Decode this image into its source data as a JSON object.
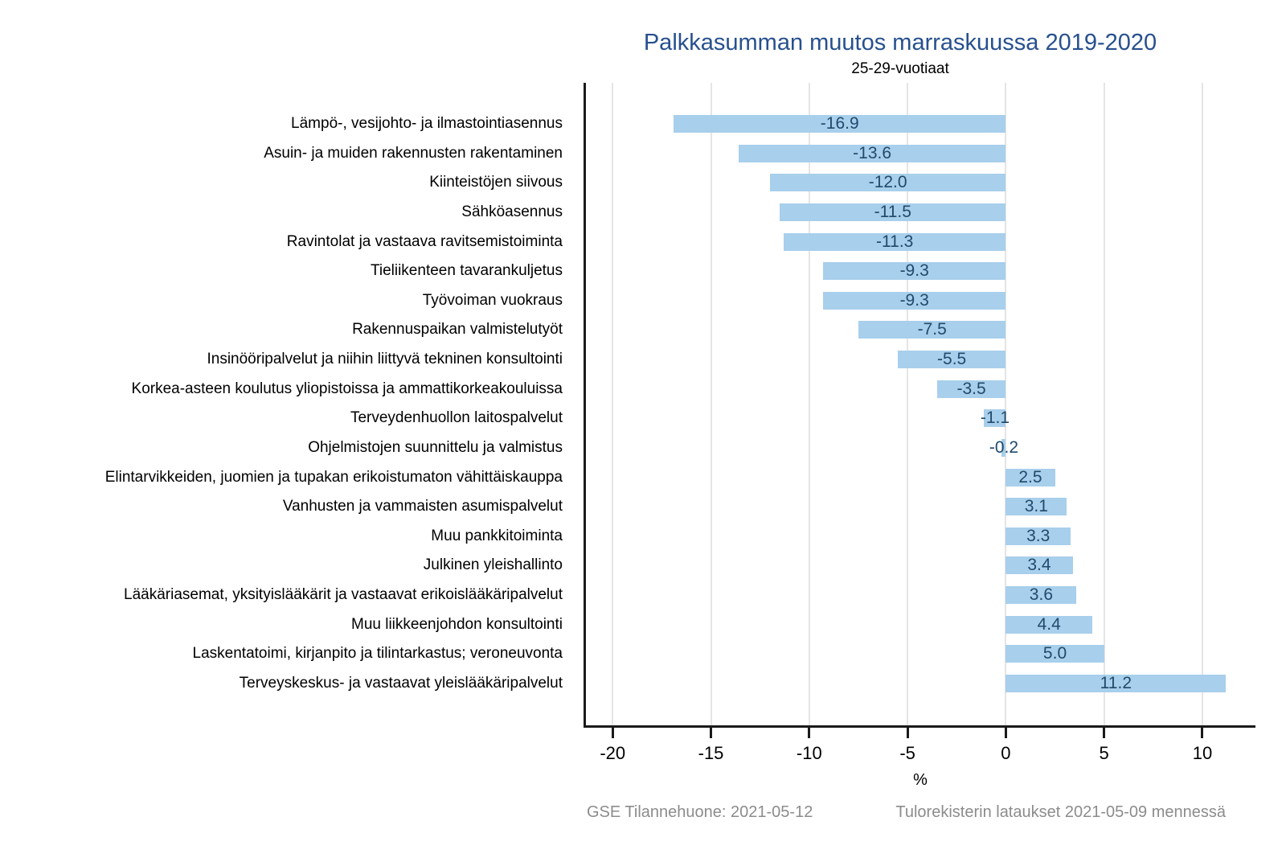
{
  "chart_data": {
    "type": "bar",
    "orientation": "horizontal",
    "title": "Palkkasumman muutos marraskuussa 2019-2020",
    "subtitle": "25-29-vuotiaat",
    "xlabel": "%",
    "categories": [
      "Lämpö-, vesijohto- ja ilmastointiasennus",
      "Asuin- ja muiden rakennusten rakentaminen",
      "Kiinteistöjen siivous",
      "Sähköasennus",
      "Ravintolat ja vastaava ravitsemistoiminta",
      "Tieliikenteen tavarankuljetus",
      "Työvoiman vuokraus",
      "Rakennuspaikan valmistelutyöt",
      "Insinööripalvelut ja niihin liittyvä tekninen konsultointi",
      "Korkea-asteen koulutus yliopistoissa ja ammattikorkeakouluissa",
      "Terveydenhuollon laitospalvelut",
      "Ohjelmistojen suunnittelu ja valmistus",
      "Elintarvikkeiden, juomien ja tupakan erikoistumaton vähittäiskauppa",
      "Vanhusten ja vammaisten asumispalvelut",
      "Muu pankkitoiminta",
      "Julkinen yleishallinto",
      "Lääkäriasemat, yksityislääkärit ja vastaavat erikoislääkäripalvelut",
      "Muu liikkeenjohdon konsultointi",
      "Laskentatoimi, kirjanpito ja tilintarkastus; veroneuvonta",
      "Terveyskeskus- ja vastaavat yleislääkäripalvelut"
    ],
    "values": [
      -16.9,
      -13.6,
      -12.0,
      -11.5,
      -11.3,
      -9.3,
      -9.3,
      -7.5,
      -5.5,
      -3.5,
      -1.1,
      -0.2,
      2.5,
      3.1,
      3.3,
      3.4,
      3.6,
      4.4,
      5.0,
      11.2
    ],
    "value_label_decimals": 1,
    "xticks": [
      -20,
      -15,
      -10,
      -5,
      0,
      5,
      10
    ],
    "xlim": [
      -21.4,
      12.7
    ],
    "grid": true,
    "legend": "none",
    "colors": {
      "bar": "#A8CFEC",
      "value_label": "#214A6B",
      "title": "#27508E",
      "subtitle": "#000000",
      "axis": "#1A1A1A",
      "gridline": "#E5E5E5",
      "footer": "#8C8C8C"
    }
  },
  "footer": {
    "left": "GSE Tilannehuone: 2021-05-12",
    "right": "Tulorekisterin lataukset 2021-05-09 mennessä"
  }
}
